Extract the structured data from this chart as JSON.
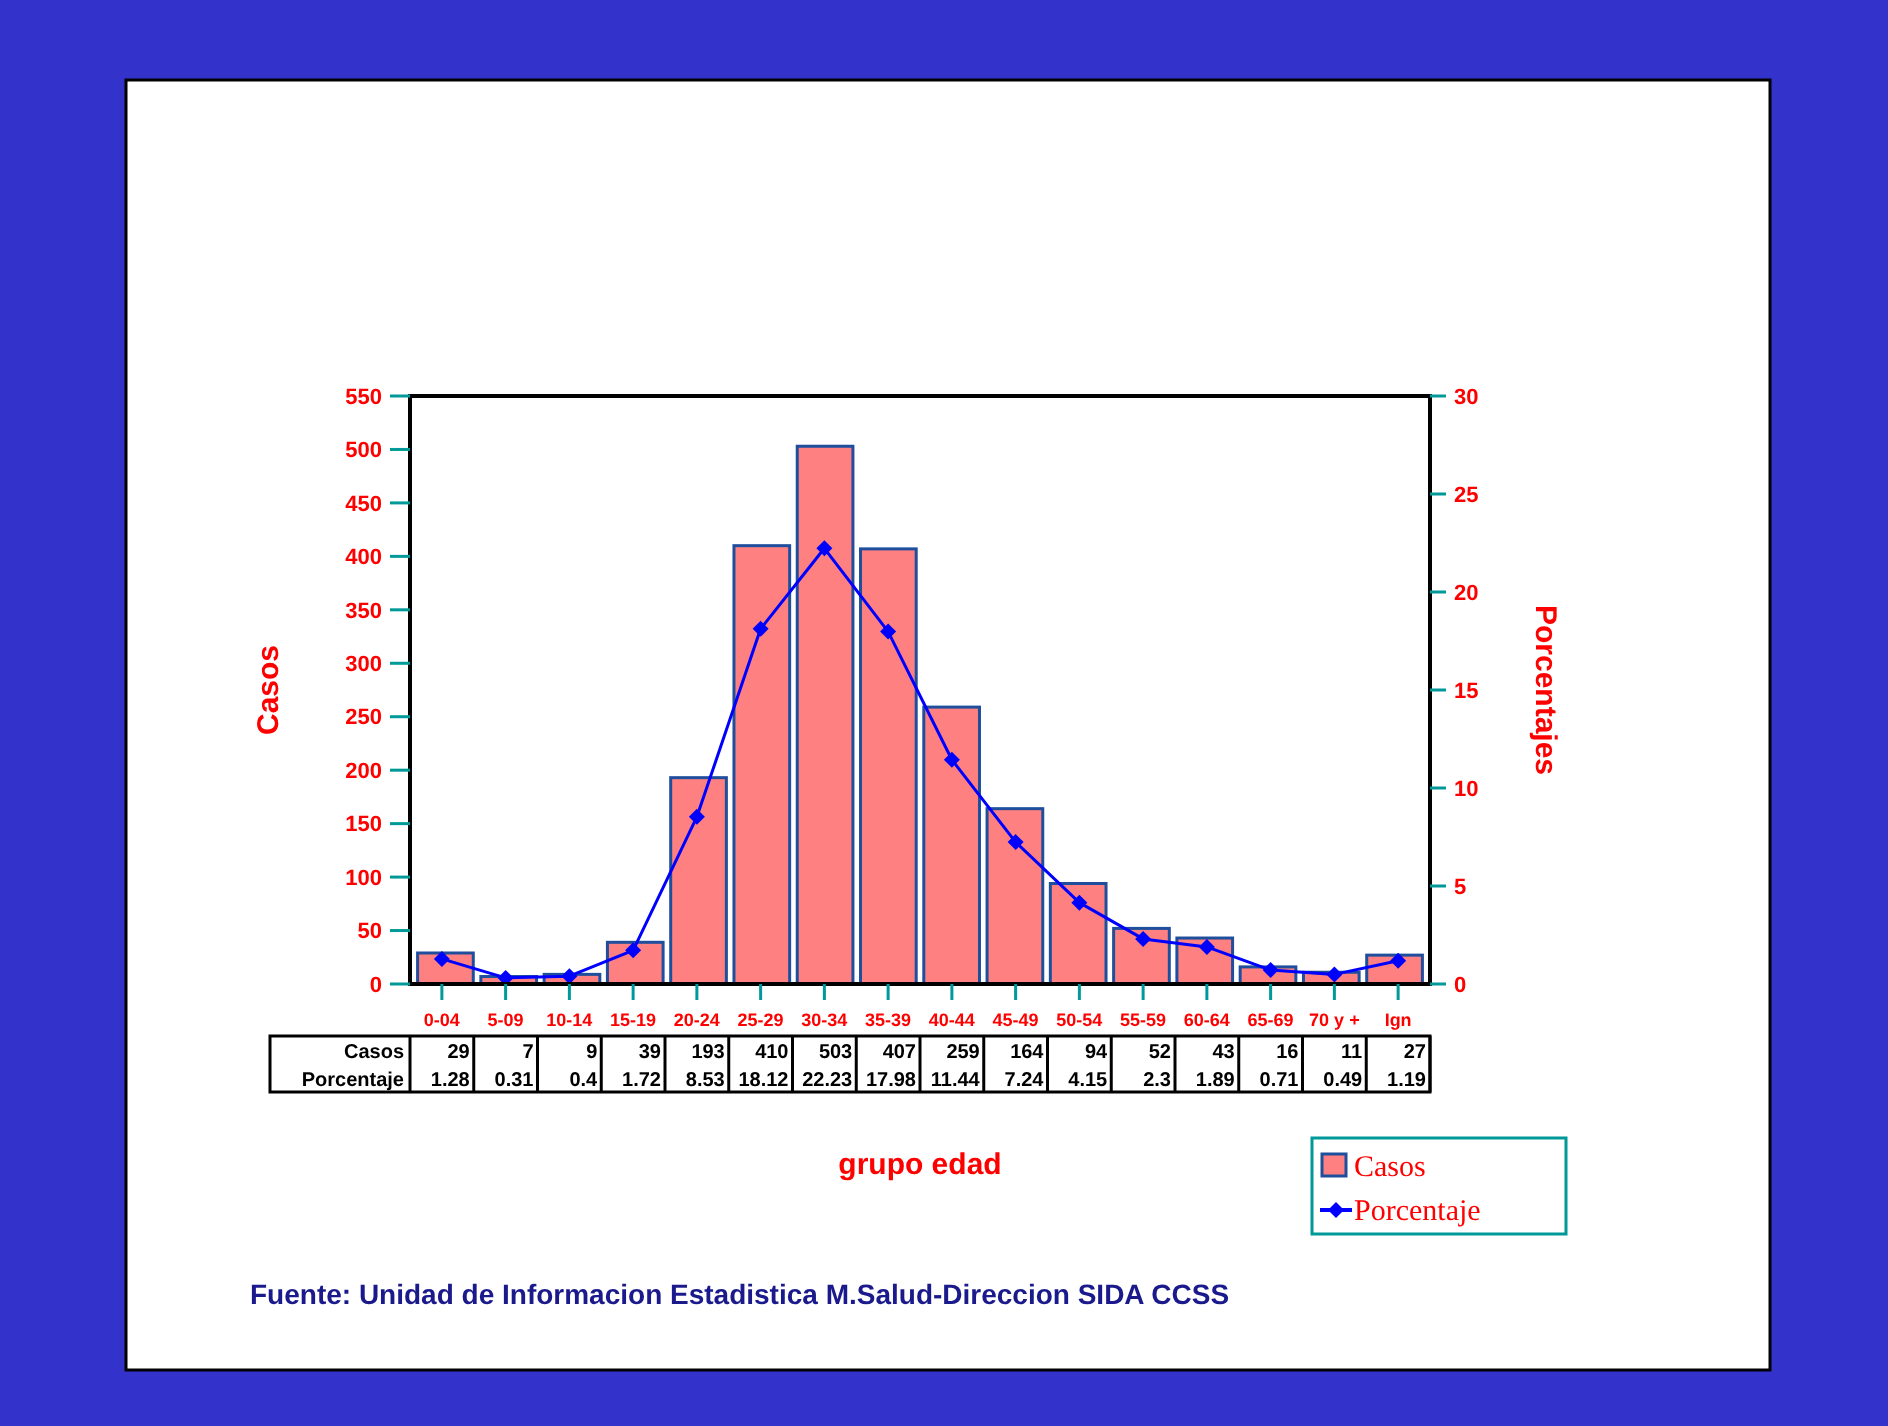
{
  "chart_data": {
    "type": "bar",
    "xlabel": "grupo edad",
    "ylabel": "Casos",
    "y2label": "Porcentajes",
    "categories": [
      "0-04",
      "5-09",
      "10-14",
      "15-19",
      "20-24",
      "25-29",
      "30-34",
      "35-39",
      "40-44",
      "45-49",
      "50-54",
      "55-59",
      "60-64",
      "65-69",
      "70 y +",
      "Ign"
    ],
    "series": [
      {
        "name": "Casos",
        "color": "#ff8080",
        "values": [
          29,
          7,
          9,
          39,
          193,
          410,
          503,
          407,
          259,
          164,
          94,
          52,
          43,
          16,
          11,
          27
        ]
      },
      {
        "name": "Porcentaje",
        "type": "line",
        "axis": "y2",
        "color": "#0000ff",
        "marker": "diamond",
        "values": [
          1.28,
          0.31,
          0.4,
          1.72,
          8.53,
          18.12,
          22.23,
          17.98,
          11.44,
          7.24,
          4.15,
          2.3,
          1.89,
          0.71,
          0.49,
          1.19
        ]
      }
    ],
    "ylim": [
      0,
      550
    ],
    "yticks": [
      0,
      50,
      100,
      150,
      200,
      250,
      300,
      350,
      400,
      450,
      500,
      550
    ],
    "y2lim": [
      0,
      30
    ],
    "y2ticks": [
      0,
      5,
      10,
      15,
      20,
      25,
      30
    ],
    "data_labels": true,
    "legend": "bottom right",
    "grid": false,
    "annotations": [
      "Fuente: Unidad de Informacion Estadistica M.Salud-Direccion SIDA CCSS"
    ]
  }
}
